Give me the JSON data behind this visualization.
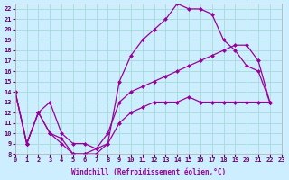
{
  "xlabel": "Windchill (Refroidissement éolien,°C)",
  "background_color": "#cceeff",
  "grid_color": "#aadddd",
  "line_color": "#990099",
  "xlim": [
    0,
    23
  ],
  "ylim": [
    8,
    22.5
  ],
  "yticks": [
    8,
    9,
    10,
    11,
    12,
    13,
    14,
    15,
    16,
    17,
    18,
    19,
    20,
    21,
    22
  ],
  "xticks": [
    0,
    1,
    2,
    3,
    4,
    5,
    6,
    7,
    8,
    9,
    10,
    11,
    12,
    13,
    14,
    15,
    16,
    17,
    18,
    19,
    20,
    21,
    22,
    23
  ],
  "line1_x": [
    0,
    1,
    2,
    3,
    4,
    5,
    6,
    7,
    8,
    9,
    10,
    11,
    12,
    13,
    14,
    15,
    16,
    17,
    18,
    19,
    20,
    21,
    22
  ],
  "line1_y": [
    14,
    9,
    12,
    10,
    9,
    8,
    8,
    8,
    9,
    15,
    17.5,
    19,
    20,
    21,
    22.5,
    22,
    22,
    21.5,
    19,
    18,
    16.5,
    16,
    13
  ],
  "line2_x": [
    0,
    1,
    2,
    3,
    4,
    5,
    6,
    7,
    8,
    9,
    10,
    11,
    12,
    13,
    14,
    15,
    16,
    17,
    18,
    19,
    20,
    21,
    22
  ],
  "line2_y": [
    14,
    9,
    12,
    10,
    9.5,
    8,
    8,
    8.5,
    10,
    13,
    14,
    14.5,
    15,
    15.5,
    16,
    16.5,
    17,
    17.5,
    18,
    18.5,
    18.5,
    17,
    13
  ],
  "line3_x": [
    0,
    1,
    2,
    3,
    4,
    5,
    6,
    7,
    8,
    9,
    10,
    11,
    12,
    13,
    14,
    15,
    16,
    17,
    18,
    19,
    20,
    21,
    22
  ],
  "line3_y": [
    14,
    9,
    12,
    13,
    10,
    9,
    9,
    8.5,
    9,
    11,
    12,
    12.5,
    13,
    13,
    13,
    13.5,
    13,
    13,
    13,
    13,
    13,
    13,
    13
  ]
}
